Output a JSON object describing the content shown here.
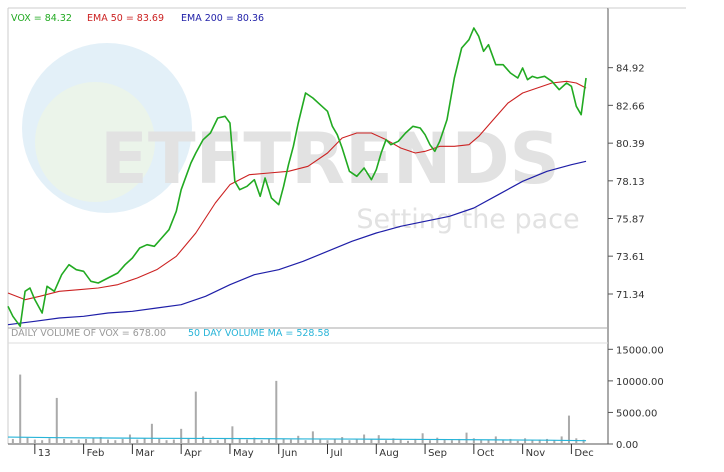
{
  "chart_data": [
    {
      "type": "line",
      "legend": [
        {
          "label": "VOX = 84.32",
          "color": "#22aa22"
        },
        {
          "label": "EMA 50 = 83.69",
          "color": "#cc2222"
        },
        {
          "label": "EMA 200 = 80.36",
          "color": "#1f1fa8"
        }
      ],
      "y_ticks": [
        "84.92",
        "82.66",
        "80.39",
        "78.13",
        "75.87",
        "73.61",
        "71.34"
      ],
      "ylim": [
        69.3,
        88.5
      ],
      "x_ticks": [
        "13",
        "Feb",
        "Mar",
        "Apr",
        "May",
        "Jun",
        "Jul",
        "Aug",
        "Sep",
        "Oct",
        "Nov",
        "Dec"
      ],
      "x_tick_positions": [
        0.0,
        1.0,
        2.0,
        3.0,
        4.0,
        5.0,
        6.0,
        7.0,
        8.0,
        9.0,
        10.0,
        11.0
      ],
      "xlim": [
        -0.55,
        11.75
      ],
      "watermark": {
        "logo": "ETFTRENDS",
        "tagline": "Setting the pace"
      },
      "series": [
        {
          "name": "VOX",
          "color": "#22aa22",
          "x": [
            -0.55,
            -0.45,
            -0.3,
            -0.2,
            -0.1,
            0.0,
            0.15,
            0.25,
            0.4,
            0.55,
            0.7,
            0.85,
            1.0,
            1.15,
            1.3,
            1.5,
            1.7,
            1.85,
            2.0,
            2.15,
            2.3,
            2.45,
            2.6,
            2.75,
            2.9,
            3.0,
            3.1,
            3.2,
            3.3,
            3.45,
            3.6,
            3.75,
            3.9,
            4.0,
            4.1,
            4.2,
            4.35,
            4.5,
            4.62,
            4.72,
            4.85,
            5.0,
            5.1,
            5.2,
            5.3,
            5.4,
            5.55,
            5.7,
            5.85,
            6.0,
            6.1,
            6.2,
            6.3,
            6.45,
            6.6,
            6.75,
            6.9,
            7.0,
            7.1,
            7.2,
            7.3,
            7.45,
            7.6,
            7.75,
            7.9,
            8.0,
            8.1,
            8.2,
            8.3,
            8.45,
            8.6,
            8.75,
            8.9,
            9.0,
            9.1,
            9.2,
            9.3,
            9.45,
            9.6,
            9.75,
            9.9,
            10.0,
            10.1,
            10.2,
            10.3,
            10.45,
            10.6,
            10.75,
            10.9,
            11.0,
            11.1,
            11.2,
            11.3
          ],
          "y": [
            70.6,
            70.0,
            69.4,
            71.5,
            71.7,
            71.0,
            70.2,
            71.8,
            71.5,
            72.5,
            73.1,
            72.8,
            72.7,
            72.1,
            72.0,
            72.3,
            72.6,
            73.1,
            73.5,
            74.1,
            74.3,
            74.2,
            74.7,
            75.2,
            76.3,
            77.6,
            78.4,
            79.2,
            79.8,
            80.6,
            81.0,
            81.9,
            82.0,
            81.6,
            78.1,
            77.6,
            77.8,
            78.2,
            77.2,
            78.3,
            77.1,
            76.7,
            77.8,
            79.1,
            80.2,
            81.6,
            83.4,
            83.1,
            82.7,
            82.3,
            81.4,
            80.9,
            80.1,
            78.7,
            78.4,
            78.9,
            78.2,
            78.8,
            79.8,
            80.6,
            80.3,
            80.5,
            81.0,
            81.4,
            81.3,
            80.9,
            80.3,
            79.9,
            80.5,
            81.8,
            84.3,
            86.1,
            86.6,
            87.3,
            86.8,
            85.9,
            86.3,
            85.1,
            85.1,
            84.6,
            84.3,
            84.9,
            84.2,
            84.4,
            84.3,
            84.4,
            84.1,
            83.6,
            84.0,
            83.8,
            82.6,
            82.1,
            84.3
          ]
        },
        {
          "name": "EMA 50",
          "color": "#cc2222",
          "x": [
            -0.55,
            -0.2,
            0.1,
            0.5,
            0.9,
            1.3,
            1.7,
            2.1,
            2.5,
            2.9,
            3.3,
            3.7,
            4.0,
            4.4,
            4.8,
            5.2,
            5.6,
            6.0,
            6.3,
            6.6,
            6.9,
            7.2,
            7.5,
            7.8,
            8.0,
            8.3,
            8.6,
            8.9,
            9.1,
            9.4,
            9.7,
            10.0,
            10.3,
            10.6,
            10.9,
            11.1,
            11.3
          ],
          "y": [
            71.4,
            71.0,
            71.2,
            71.5,
            71.6,
            71.7,
            71.9,
            72.3,
            72.8,
            73.6,
            75.0,
            76.8,
            77.9,
            78.5,
            78.6,
            78.7,
            79.0,
            79.8,
            80.7,
            81.0,
            81.0,
            80.6,
            80.1,
            79.8,
            79.9,
            80.2,
            80.2,
            80.3,
            80.8,
            81.8,
            82.8,
            83.4,
            83.7,
            84.0,
            84.1,
            84.0,
            83.7
          ]
        },
        {
          "name": "EMA 200",
          "color": "#1f1fa8",
          "x": [
            -0.55,
            0.0,
            0.5,
            1.0,
            1.5,
            2.0,
            2.5,
            3.0,
            3.5,
            4.0,
            4.5,
            5.0,
            5.5,
            6.0,
            6.5,
            7.0,
            7.5,
            8.0,
            8.5,
            9.0,
            9.5,
            10.0,
            10.5,
            11.0,
            11.3
          ],
          "y": [
            69.5,
            69.7,
            69.9,
            70.0,
            70.2,
            70.3,
            70.5,
            70.7,
            71.2,
            71.9,
            72.5,
            72.8,
            73.3,
            73.9,
            74.5,
            75.0,
            75.4,
            75.7,
            76.0,
            76.5,
            77.3,
            78.1,
            78.7,
            79.1,
            79.3
          ]
        }
      ]
    },
    {
      "type": "bar",
      "legend": [
        {
          "label": "DAILY VOLUME OF VOX = 678.00",
          "color": "#999999"
        },
        {
          "label": "50 DAY VOLUME MA = 528.58",
          "color": "#28b4d8"
        }
      ],
      "y_ticks": [
        "15000.00",
        "10000.00",
        "5000.00",
        "0.00"
      ],
      "y_tick_values": [
        15000,
        10000,
        5000,
        0
      ],
      "ylim": [
        0,
        16000
      ],
      "xlim": [
        -0.55,
        11.75
      ],
      "x": [
        -0.45,
        -0.3,
        -0.15,
        0.0,
        0.15,
        0.3,
        0.45,
        0.6,
        0.75,
        0.9,
        1.05,
        1.2,
        1.35,
        1.5,
        1.65,
        1.8,
        1.95,
        2.1,
        2.25,
        2.4,
        2.55,
        2.7,
        2.85,
        3.0,
        3.15,
        3.3,
        3.45,
        3.6,
        3.75,
        3.9,
        4.05,
        4.2,
        4.35,
        4.5,
        4.65,
        4.8,
        4.95,
        5.1,
        5.25,
        5.4,
        5.55,
        5.7,
        5.85,
        6.0,
        6.15,
        6.3,
        6.45,
        6.6,
        6.75,
        6.9,
        7.05,
        7.2,
        7.35,
        7.5,
        7.65,
        7.8,
        7.95,
        8.1,
        8.25,
        8.4,
        8.55,
        8.7,
        8.85,
        9.0,
        9.15,
        9.3,
        9.45,
        9.6,
        9.75,
        9.9,
        10.05,
        10.2,
        10.35,
        10.5,
        10.65,
        10.8,
        10.95,
        11.1,
        11.25
      ],
      "values": [
        800,
        11000,
        1000,
        700,
        600,
        900,
        7300,
        800,
        600,
        700,
        800,
        900,
        1100,
        700,
        600,
        800,
        1500,
        700,
        900,
        3200,
        800,
        600,
        700,
        2400,
        900,
        8300,
        1200,
        700,
        600,
        900,
        2800,
        800,
        700,
        1000,
        600,
        900,
        10000,
        800,
        700,
        1300,
        600,
        2000,
        700,
        600,
        800,
        1100,
        600,
        700,
        1500,
        800,
        1400,
        600,
        900,
        700,
        500,
        800,
        1700,
        600,
        1000,
        700,
        600,
        800,
        1800,
        900,
        600,
        700,
        1200,
        600,
        800,
        500,
        900,
        600,
        700,
        800,
        600,
        1200,
        4500,
        900,
        678
      ],
      "ma_x": [
        -0.55,
        0.5,
        1.5,
        2.5,
        3.5,
        4.5,
        5.5,
        6.5,
        7.5,
        8.5,
        9.5,
        10.5,
        11.3
      ],
      "ma_values": [
        1100,
        1000,
        950,
        900,
        880,
        850,
        800,
        780,
        740,
        700,
        650,
        600,
        528.58
      ]
    }
  ]
}
